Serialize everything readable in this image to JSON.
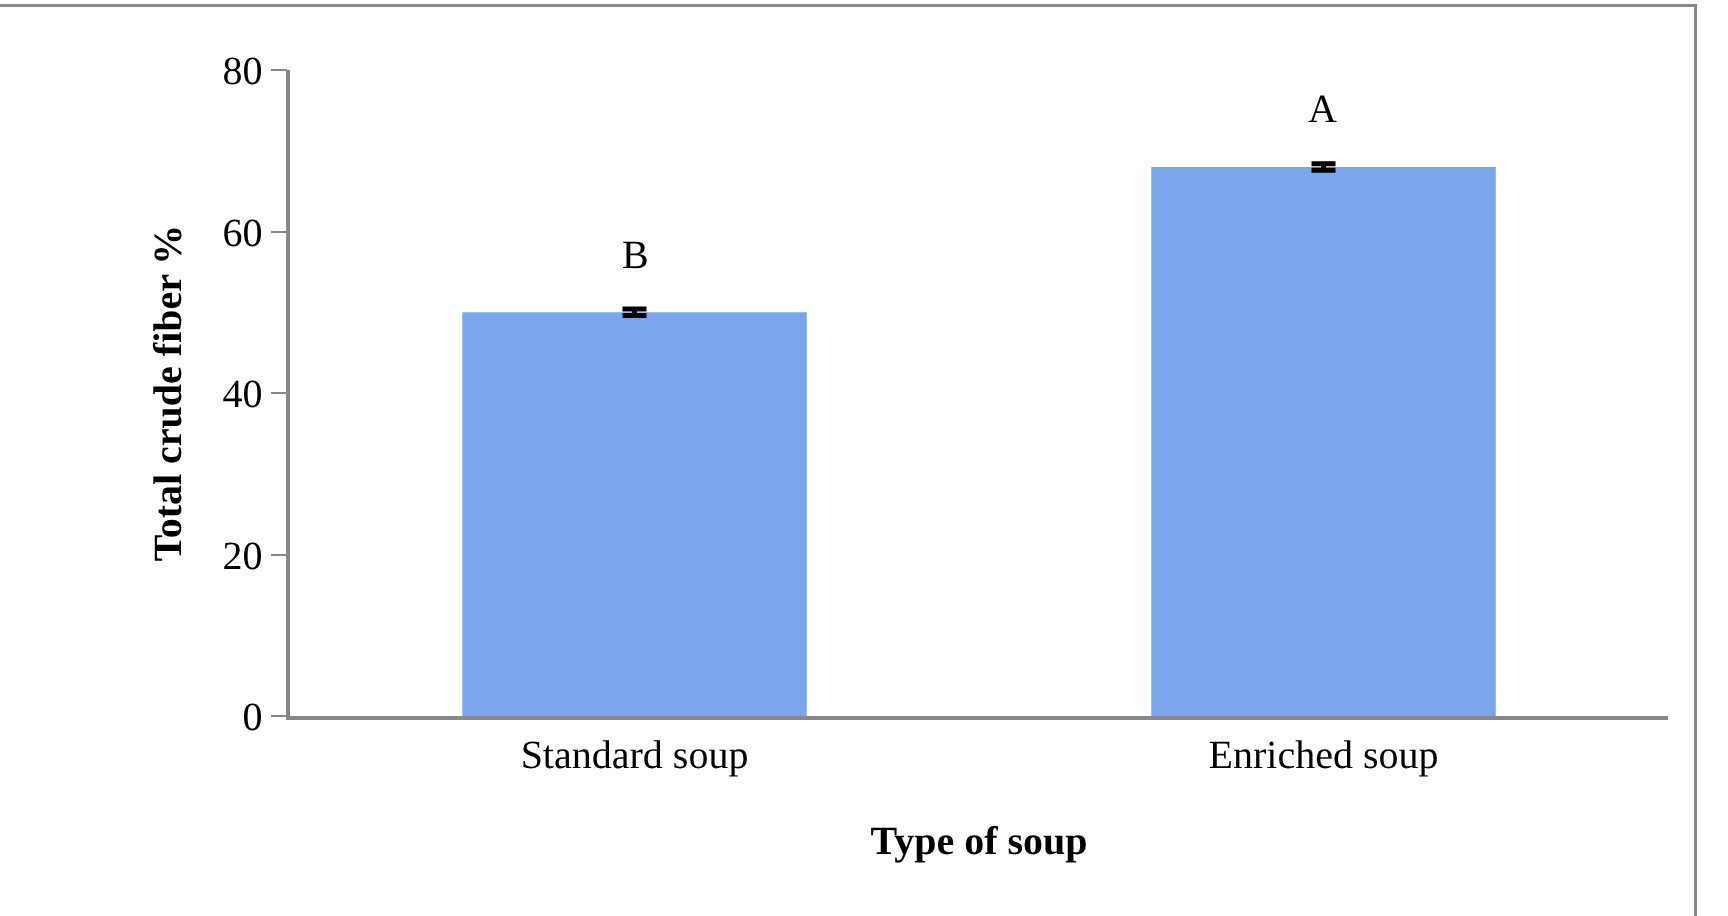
{
  "chart_data": {
    "type": "bar",
    "xlabel": "Type of soup",
    "ylabel": "Total crude fiber %",
    "categories": [
      "Standard soup",
      "Enriched soup"
    ],
    "values": [
      50,
      68
    ],
    "errors": [
      0.4,
      0.4
    ],
    "color": "#7aa6ec",
    "ylim": [
      0,
      80
    ],
    "yticks": [
      0,
      20,
      40,
      60,
      80
    ],
    "annotations": [
      {
        "text": "B",
        "x": "Standard soup",
        "y": 50
      },
      {
        "text": "A",
        "x": "Enriched soup",
        "y": 68
      }
    ]
  }
}
